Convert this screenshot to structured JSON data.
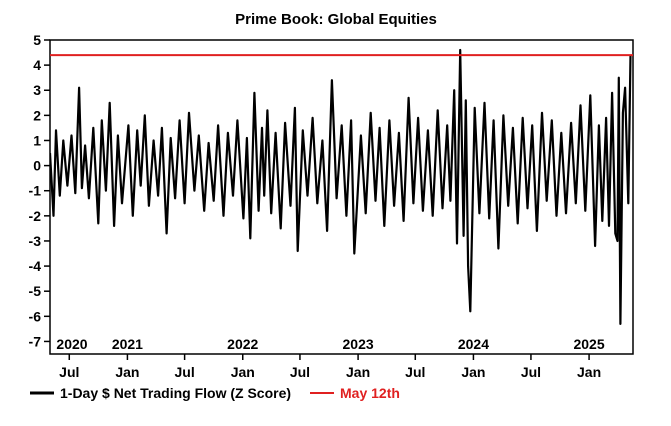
{
  "chart_data": {
    "type": "line",
    "title": "Prime Book: Global Equities",
    "xlabel": "",
    "ylabel": "",
    "ylim": [
      -7.5,
      5
    ],
    "yticks": [
      5,
      4,
      3,
      2,
      1,
      0,
      -1,
      -2,
      -3,
      -4,
      -5,
      -6,
      -7
    ],
    "xlim": [
      "2020-05-01",
      "2025-05-20"
    ],
    "year_labels": [
      {
        "label": "2020",
        "date": "2020-05-20"
      },
      {
        "label": "2021",
        "date": "2021-01-01"
      },
      {
        "label": "2022",
        "date": "2022-01-01"
      },
      {
        "label": "2023",
        "date": "2023-01-01"
      },
      {
        "label": "2024",
        "date": "2024-01-01"
      },
      {
        "label": "2025",
        "date": "2025-01-01"
      }
    ],
    "month_ticks": [
      {
        "label": "Jul",
        "date": "2020-07-01"
      },
      {
        "label": "Jan",
        "date": "2021-01-01"
      },
      {
        "label": "Jul",
        "date": "2021-07-01"
      },
      {
        "label": "Jan",
        "date": "2022-01-01"
      },
      {
        "label": "Jul",
        "date": "2022-07-01"
      },
      {
        "label": "Jan",
        "date": "2023-01-01"
      },
      {
        "label": "Jul",
        "date": "2023-07-01"
      },
      {
        "label": "Jan",
        "date": "2024-01-01"
      },
      {
        "label": "Jul",
        "date": "2024-07-01"
      },
      {
        "label": "Jan",
        "date": "2025-01-01"
      }
    ],
    "series": [
      {
        "name": "1-Day $ Net Trading Flow (Z Score)",
        "color": "#000000",
        "x": [
          "2020-05-01",
          "2020-05-12",
          "2020-05-20",
          "2020-06-01",
          "2020-06-12",
          "2020-06-25",
          "2020-07-08",
          "2020-07-20",
          "2020-08-01",
          "2020-08-10",
          "2020-08-20",
          "2020-09-01",
          "2020-09-15",
          "2020-10-01",
          "2020-10-12",
          "2020-10-25",
          "2020-11-06",
          "2020-11-20",
          "2020-12-02",
          "2020-12-15",
          "2021-01-04",
          "2021-01-18",
          "2021-02-01",
          "2021-02-12",
          "2021-02-25",
          "2021-03-10",
          "2021-03-25",
          "2021-04-08",
          "2021-04-20",
          "2021-05-05",
          "2021-05-18",
          "2021-06-01",
          "2021-06-15",
          "2021-07-01",
          "2021-07-15",
          "2021-08-01",
          "2021-08-15",
          "2021-09-01",
          "2021-09-15",
          "2021-10-01",
          "2021-10-15",
          "2021-11-01",
          "2021-11-15",
          "2021-12-01",
          "2021-12-15",
          "2022-01-03",
          "2022-01-14",
          "2022-01-25",
          "2022-02-07",
          "2022-02-20",
          "2022-03-03",
          "2022-03-10",
          "2022-03-20",
          "2022-04-01",
          "2022-04-15",
          "2022-05-01",
          "2022-05-15",
          "2022-06-01",
          "2022-06-15",
          "2022-06-24",
          "2022-07-10",
          "2022-07-25",
          "2022-08-10",
          "2022-08-25",
          "2022-09-10",
          "2022-09-25",
          "2022-10-10",
          "2022-10-25",
          "2022-11-10",
          "2022-11-25",
          "2022-12-10",
          "2022-12-20",
          "2023-01-10",
          "2023-01-25",
          "2023-02-10",
          "2023-02-25",
          "2023-03-10",
          "2023-03-25",
          "2023-04-10",
          "2023-04-25",
          "2023-05-10",
          "2023-05-25",
          "2023-06-10",
          "2023-06-25",
          "2023-07-10",
          "2023-07-25",
          "2023-08-10",
          "2023-08-25",
          "2023-09-10",
          "2023-09-25",
          "2023-10-10",
          "2023-10-20",
          "2023-11-01",
          "2023-11-10",
          "2023-11-20",
          "2023-12-01",
          "2023-12-08",
          "2023-12-15",
          "2023-12-22",
          "2024-01-05",
          "2024-01-20",
          "2024-02-05",
          "2024-02-20",
          "2024-03-05",
          "2024-03-20",
          "2024-04-05",
          "2024-04-20",
          "2024-05-05",
          "2024-05-20",
          "2024-06-05",
          "2024-06-20",
          "2024-07-05",
          "2024-07-20",
          "2024-08-05",
          "2024-08-20",
          "2024-09-05",
          "2024-09-20",
          "2024-10-05",
          "2024-10-20",
          "2024-11-05",
          "2024-11-20",
          "2024-12-05",
          "2024-12-20",
          "2025-01-05",
          "2025-01-20",
          "2025-02-01",
          "2025-02-12",
          "2025-02-24",
          "2025-03-05",
          "2025-03-15",
          "2025-03-25",
          "2025-04-01",
          "2025-04-05",
          "2025-04-10",
          "2025-04-18",
          "2025-04-25",
          "2025-05-05",
          "2025-05-12"
        ],
        "values": [
          0.5,
          -2.0,
          1.4,
          -1.2,
          1.0,
          -0.8,
          1.2,
          -1.1,
          3.1,
          -0.9,
          0.8,
          -1.3,
          1.5,
          -2.3,
          1.8,
          -1.0,
          2.5,
          -2.4,
          1.2,
          -1.5,
          1.6,
          -2.0,
          1.4,
          -0.8,
          2.0,
          -1.6,
          1.0,
          -1.2,
          1.5,
          -2.7,
          1.1,
          -1.3,
          1.8,
          -1.5,
          2.1,
          -1.0,
          1.2,
          -1.8,
          0.9,
          -1.4,
          1.6,
          -2.0,
          1.3,
          -1.2,
          1.8,
          -2.1,
          1.1,
          -2.9,
          2.9,
          -1.8,
          1.5,
          -1.2,
          2.2,
          -1.9,
          1.3,
          -2.5,
          1.7,
          -1.6,
          2.3,
          -3.4,
          1.4,
          -1.2,
          1.9,
          -1.5,
          1.0,
          -2.6,
          3.4,
          -1.3,
          1.6,
          -2.0,
          1.8,
          -3.5,
          1.2,
          -1.9,
          2.1,
          -1.4,
          1.5,
          -2.4,
          1.8,
          -1.6,
          1.3,
          -2.2,
          2.7,
          -1.5,
          1.9,
          -1.8,
          1.4,
          -2.0,
          2.2,
          -1.7,
          1.6,
          -1.4,
          3.0,
          -3.1,
          4.6,
          -2.8,
          2.6,
          -4.0,
          -5.8,
          2.3,
          -1.9,
          2.5,
          -2.1,
          1.8,
          -3.3,
          2.0,
          -1.6,
          1.5,
          -2.3,
          1.9,
          -1.7,
          1.6,
          -2.6,
          2.1,
          -1.4,
          1.8,
          -2.0,
          1.3,
          -1.9,
          1.7,
          -1.5,
          2.4,
          -1.8,
          2.8,
          -3.2,
          1.6,
          -2.2,
          1.9,
          -2.4,
          2.9,
          -2.7,
          -3.0,
          3.5,
          -6.3,
          2.1,
          3.1,
          -1.5,
          4.4
        ]
      },
      {
        "name": "May 12th",
        "color": "#e02020",
        "type": "hline",
        "value": 4.4
      }
    ],
    "legend": {
      "placement": "bottom-left"
    },
    "grid": false
  }
}
